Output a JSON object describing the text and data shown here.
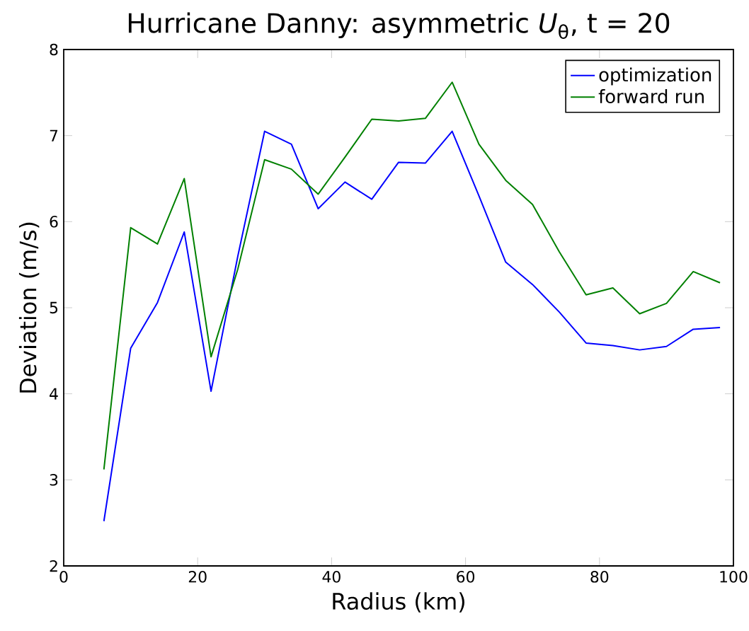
{
  "chart_data": {
    "type": "line",
    "title": "Hurricane Danny: asymmetric *U*$_{θ}$, t = 20",
    "xlabel": "Radius (km)",
    "ylabel": "Deviation (m/s)",
    "x": [
      6,
      10,
      14,
      18,
      22,
      26,
      30,
      34,
      38,
      42,
      46,
      50,
      54,
      58,
      62,
      66,
      70,
      74,
      78,
      82,
      86,
      90,
      94,
      98
    ],
    "series": [
      {
        "name": "optimization",
        "color": "#0000ff",
        "values": [
          2.52,
          4.53,
          5.06,
          5.88,
          4.03,
          5.6,
          7.05,
          6.9,
          6.15,
          6.46,
          6.26,
          6.69,
          6.68,
          7.05,
          6.3,
          5.53,
          5.27,
          4.95,
          4.59,
          4.56,
          4.51,
          4.55,
          4.75,
          4.77
        ]
      },
      {
        "name": "forward run",
        "color": "#008000",
        "values": [
          3.12,
          5.93,
          5.74,
          6.5,
          4.43,
          5.45,
          6.72,
          6.61,
          6.32,
          6.75,
          7.19,
          7.17,
          7.2,
          7.62,
          6.9,
          6.48,
          6.2,
          5.65,
          5.15,
          5.23,
          4.93,
          5.05,
          5.42,
          5.29
        ]
      }
    ],
    "xlim": [
      0,
      100
    ],
    "ylim": [
      2,
      8
    ],
    "xticks": [
      0,
      20,
      40,
      60,
      80,
      100
    ],
    "yticks": [
      2,
      3,
      4,
      5,
      6,
      7,
      8
    ],
    "grid": false,
    "legend": "top right",
    "marker": "none",
    "line_style": "solid"
  }
}
